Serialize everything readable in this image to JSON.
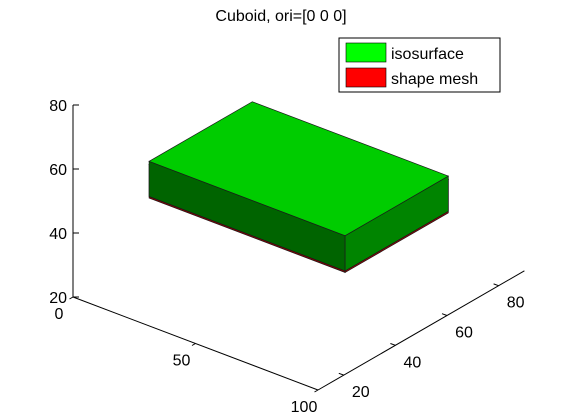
{
  "chart_data": {
    "type": "3d-surface",
    "title": "Cuboid, ori=[0 0 0]",
    "xlabel": "",
    "ylabel": "",
    "zlabel": "",
    "xlim": [
      0,
      100
    ],
    "ylim": [
      10,
      90
    ],
    "zlim": [
      20,
      80
    ],
    "x_ticks": [
      "0",
      "50",
      "100"
    ],
    "y_ticks": [
      "20",
      "40",
      "60",
      "80"
    ],
    "z_ticks": [
      "20",
      "40",
      "60",
      "80"
    ],
    "grid": false,
    "legend_position": "top-right",
    "series": [
      {
        "name": "isosurface",
        "color": "#00ff00"
      },
      {
        "name": "shape mesh",
        "color": "#ff0000"
      }
    ],
    "shapes": [
      {
        "series": "shape mesh",
        "kind": "cuboid",
        "x": [
          10,
          90
        ],
        "y": [
          30,
          70
        ],
        "z": [
          44.5,
          55
        ]
      },
      {
        "series": "isosurface",
        "kind": "cuboid",
        "x": [
          10,
          90
        ],
        "y": [
          30,
          70
        ],
        "z": [
          45,
          56
        ]
      }
    ]
  }
}
